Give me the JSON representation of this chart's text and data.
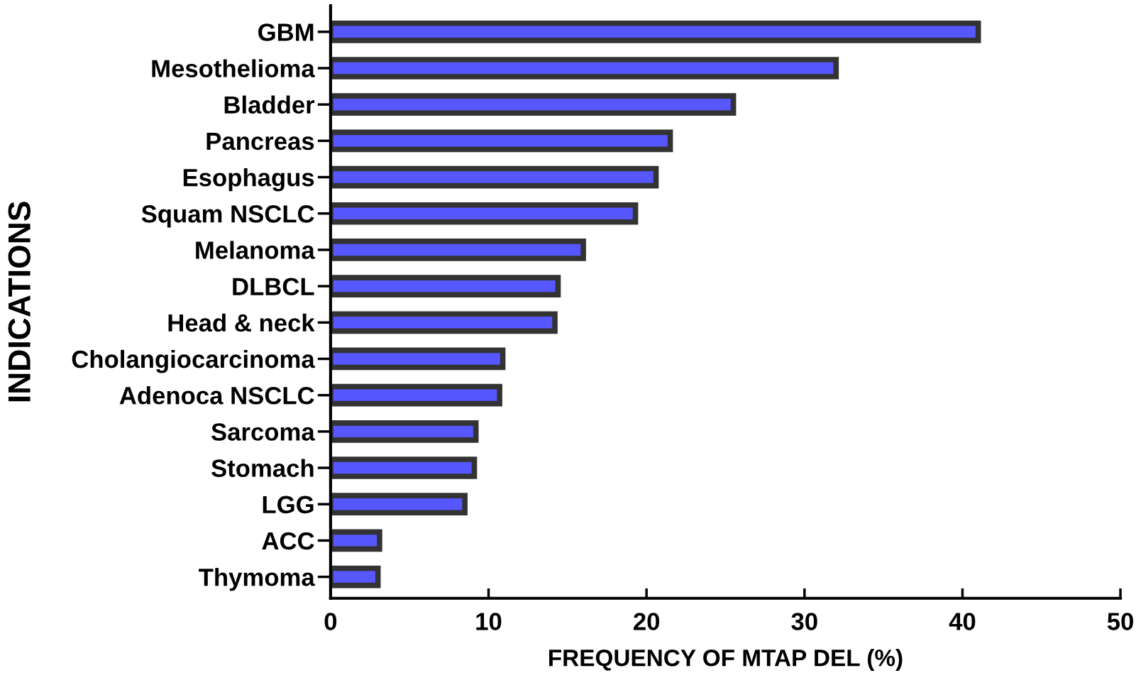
{
  "chart_data": {
    "type": "bar",
    "orientation": "horizontal",
    "categories": [
      "GBM",
      "Mesothelioma",
      "Bladder",
      "Pancreas",
      "Esophagus",
      "Squam NSCLC",
      "Melanoma",
      "DLBCL",
      "Head & neck",
      "Cholangiocarcinoma",
      "Adenoca NSCLC",
      "Sarcoma",
      "Stomach",
      "LGG",
      "ACC",
      "Thymoma"
    ],
    "values": [
      41.0,
      32.0,
      25.5,
      21.5,
      20.6,
      19.3,
      16.0,
      14.4,
      14.2,
      10.9,
      10.7,
      9.2,
      9.1,
      8.5,
      3.1,
      3.0
    ],
    "color": "#5757ff",
    "xlim": [
      0,
      50
    ],
    "xticks": [
      0,
      10,
      20,
      30,
      40,
      50
    ],
    "xlabel": "FREQUENCY OF MTAP DEL (%)",
    "ylabel": "INDICATIONS",
    "grid": false
  }
}
